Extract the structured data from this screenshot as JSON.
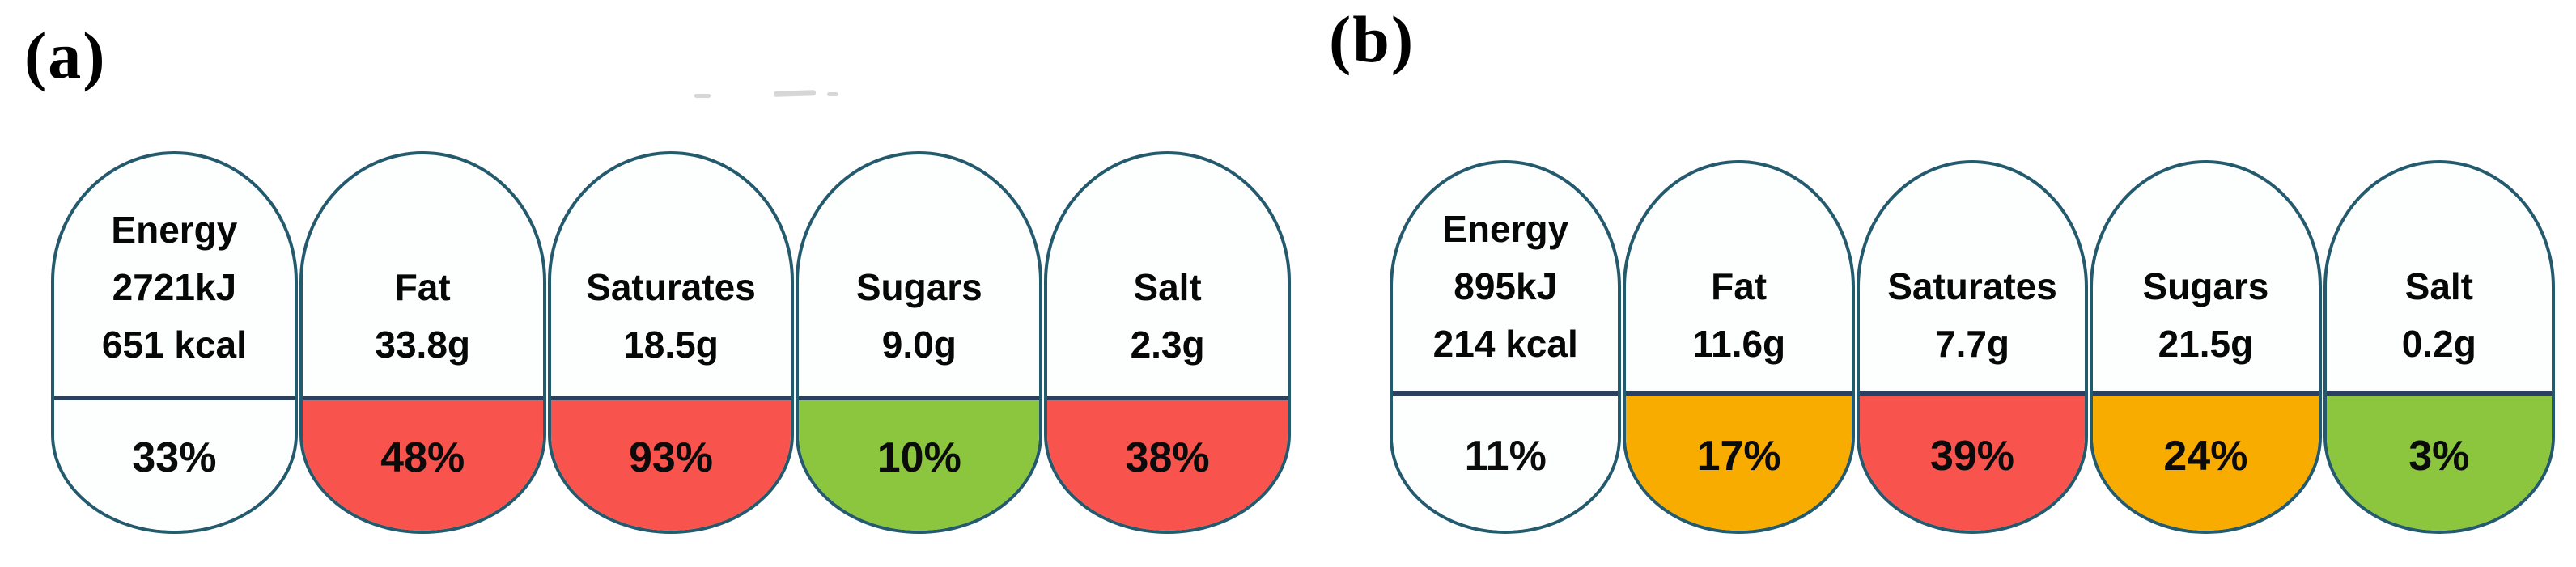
{
  "figure_type": "front-of-pack traffic-light nutrition labels",
  "colors": {
    "red": "#f9534d",
    "amber": "#f9ac00",
    "green": "#8bc63e",
    "white": "#fdfefe",
    "pill_outline": "#245a6d",
    "divider": "#2b3f5e"
  },
  "panel_a": {
    "label": "(a)",
    "pills": [
      {
        "nutrient": "Energy",
        "line1": "Energy",
        "line2": "2721kJ",
        "line3": "651 kcal",
        "percent": "33%",
        "fill": "#fdfefe"
      },
      {
        "nutrient": "Fat",
        "line1": "Fat",
        "line2": "33.8g",
        "percent": "48%",
        "fill": "#f9534d"
      },
      {
        "nutrient": "Saturates",
        "line1": "Saturates",
        "line2": "18.5g",
        "percent": "93%",
        "fill": "#f9534d"
      },
      {
        "nutrient": "Sugars",
        "line1": "Sugars",
        "line2": "9.0g",
        "percent": "10%",
        "fill": "#8bc63e"
      },
      {
        "nutrient": "Salt",
        "line1": "Salt",
        "line2": "2.3g",
        "percent": "38%",
        "fill": "#f9534d"
      }
    ]
  },
  "panel_b": {
    "label": "(b)",
    "pills": [
      {
        "nutrient": "Energy",
        "line1": "Energy",
        "line2": "895kJ",
        "line3": "214 kcal",
        "percent": "11%",
        "fill": "#fdfefe"
      },
      {
        "nutrient": "Fat",
        "line1": "Fat",
        "line2": "11.6g",
        "percent": "17%",
        "fill": "#f9ac00"
      },
      {
        "nutrient": "Saturates",
        "line1": "Saturates",
        "line2": "7.7g",
        "percent": "39%",
        "fill": "#f9534d"
      },
      {
        "nutrient": "Sugars",
        "line1": "Sugars",
        "line2": "21.5g",
        "percent": "24%",
        "fill": "#f9ac00"
      },
      {
        "nutrient": "Salt",
        "line1": "Salt",
        "line2": "0.2g",
        "percent": "3%",
        "fill": "#8bc63e"
      }
    ]
  }
}
